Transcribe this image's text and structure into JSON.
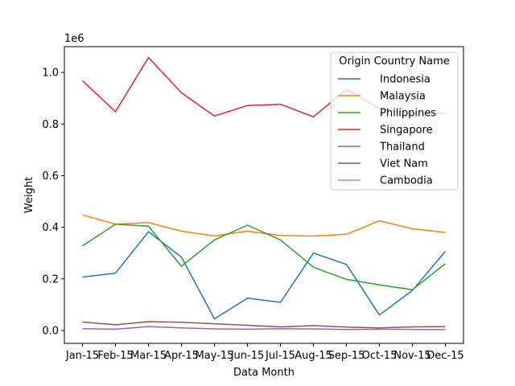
{
  "chart_data": {
    "type": "line",
    "categories": [
      "Jan-15",
      "Feb-15",
      "Mar-15",
      "Apr-15",
      "May-15",
      "Jun-15",
      "Jul-15",
      "Aug-15",
      "Sep-15",
      "Oct-15",
      "Nov-15",
      "Dec-15"
    ],
    "xlabel": "Data Month",
    "ylabel": "Weight",
    "y_offset_text": "1e6",
    "ylim": [
      -0.05,
      1.1
    ],
    "yticks": [
      "0.0",
      "0.2",
      "0.4",
      "0.6",
      "0.8",
      "1.0"
    ],
    "grid": false,
    "legend": {
      "title": "Origin Country Name",
      "placement": "top-right"
    },
    "series": [
      {
        "name": "Indonesia",
        "color": "#1f77b4",
        "values": [
          0.207,
          0.222,
          0.383,
          0.284,
          0.045,
          0.125,
          0.109,
          0.3,
          0.256,
          0.06,
          0.155,
          0.307
        ]
      },
      {
        "name": "Malaysia",
        "color": "#ff7f0e",
        "values": [
          0.448,
          0.412,
          0.418,
          0.385,
          0.366,
          0.385,
          0.368,
          0.366,
          0.373,
          0.425,
          0.394,
          0.38
        ]
      },
      {
        "name": "Philippines",
        "color": "#2ca02c",
        "values": [
          0.328,
          0.412,
          0.404,
          0.249,
          0.351,
          0.408,
          0.351,
          0.245,
          0.198,
          0.177,
          0.158,
          0.259
        ]
      },
      {
        "name": "Singapore",
        "color": "#d62728",
        "values": [
          0.968,
          0.848,
          1.058,
          0.921,
          0.831,
          0.872,
          0.877,
          0.828,
          0.934,
          0.86,
          0.84,
          0.842
        ]
      },
      {
        "name": "Thailand",
        "color": "#9467bd",
        "values": [
          0.007,
          0.005,
          0.015,
          0.01,
          0.006,
          0.005,
          0.007,
          0.006,
          0.004,
          0.005,
          0.004,
          0.004
        ]
      },
      {
        "name": "Viet Nam",
        "color": "#8c564b",
        "values": [
          0.033,
          0.022,
          0.034,
          0.032,
          0.026,
          0.02,
          0.014,
          0.019,
          0.013,
          0.01,
          0.014,
          0.015
        ]
      },
      {
        "name": "Cambodia",
        "color": "#e377c2",
        "values": [
          null,
          null,
          null,
          null,
          null,
          null,
          null,
          null,
          null,
          null,
          null,
          null
        ]
      }
    ]
  }
}
